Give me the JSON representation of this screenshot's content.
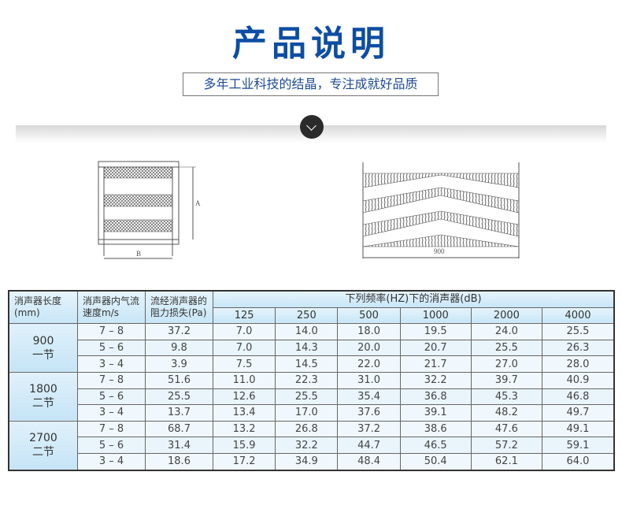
{
  "header": {
    "title": "产品说明",
    "subtitle": "多年工业科技的结晶，专注成就好品质"
  },
  "diagrams": {
    "left_width_label": "B",
    "left_height_label": "A",
    "right_length_label": "900"
  },
  "table": {
    "col_headers": [
      "消声器长度(mm)",
      "消声器内气流速度m/s",
      "流经消声器的阻力损失(Pa)"
    ],
    "freq_group_header": "下列频率(HZ)下的消声器(dB)",
    "frequencies": [
      "125",
      "250",
      "500",
      "1000",
      "2000",
      "4000"
    ],
    "groups": [
      {
        "length": "900",
        "sections": "一节",
        "rows": [
          {
            "speed": "7 – 8",
            "loss": "37.2",
            "db": [
              "7.0",
              "14.0",
              "18.0",
              "19.5",
              "24.0",
              "25.5"
            ]
          },
          {
            "speed": "5 – 6",
            "loss": "9.8",
            "db": [
              "7.0",
              "14.3",
              "20.0",
              "20.7",
              "25.5",
              "26.3"
            ]
          },
          {
            "speed": "3 – 4",
            "loss": "3.9",
            "db": [
              "7.5",
              "14.5",
              "22.0",
              "21.7",
              "27.0",
              "28.0"
            ]
          }
        ]
      },
      {
        "length": "1800",
        "sections": "二节",
        "rows": [
          {
            "speed": "7 – 8",
            "loss": "51.6",
            "db": [
              "11.0",
              "22.3",
              "31.0",
              "32.2",
              "39.7",
              "40.9"
            ]
          },
          {
            "speed": "5 – 6",
            "loss": "25.5",
            "db": [
              "12.6",
              "25.5",
              "35.4",
              "36.8",
              "45.3",
              "46.8"
            ]
          },
          {
            "speed": "3 – 4",
            "loss": "13.7",
            "db": [
              "13.4",
              "17.0",
              "37.6",
              "39.1",
              "48.2",
              "49.7"
            ]
          }
        ]
      },
      {
        "length": "2700",
        "sections": "二节",
        "rows": [
          {
            "speed": "7 – 8",
            "loss": "68.7",
            "db": [
              "13.2",
              "26.8",
              "37.2",
              "38.6",
              "47.6",
              "49.1"
            ]
          },
          {
            "speed": "5 – 6",
            "loss": "31.4",
            "db": [
              "15.9",
              "32.2",
              "44.7",
              "46.5",
              "57.2",
              "59.1"
            ]
          },
          {
            "speed": "3 – 4",
            "loss": "18.6",
            "db": [
              "17.2",
              "34.9",
              "48.4",
              "50.4",
              "62.1",
              "64.0"
            ]
          }
        ]
      }
    ]
  },
  "colors": {
    "title": "#0d4ea3",
    "header_bg": "#c8e6f7",
    "cell_bg": "#f1f8fd"
  }
}
